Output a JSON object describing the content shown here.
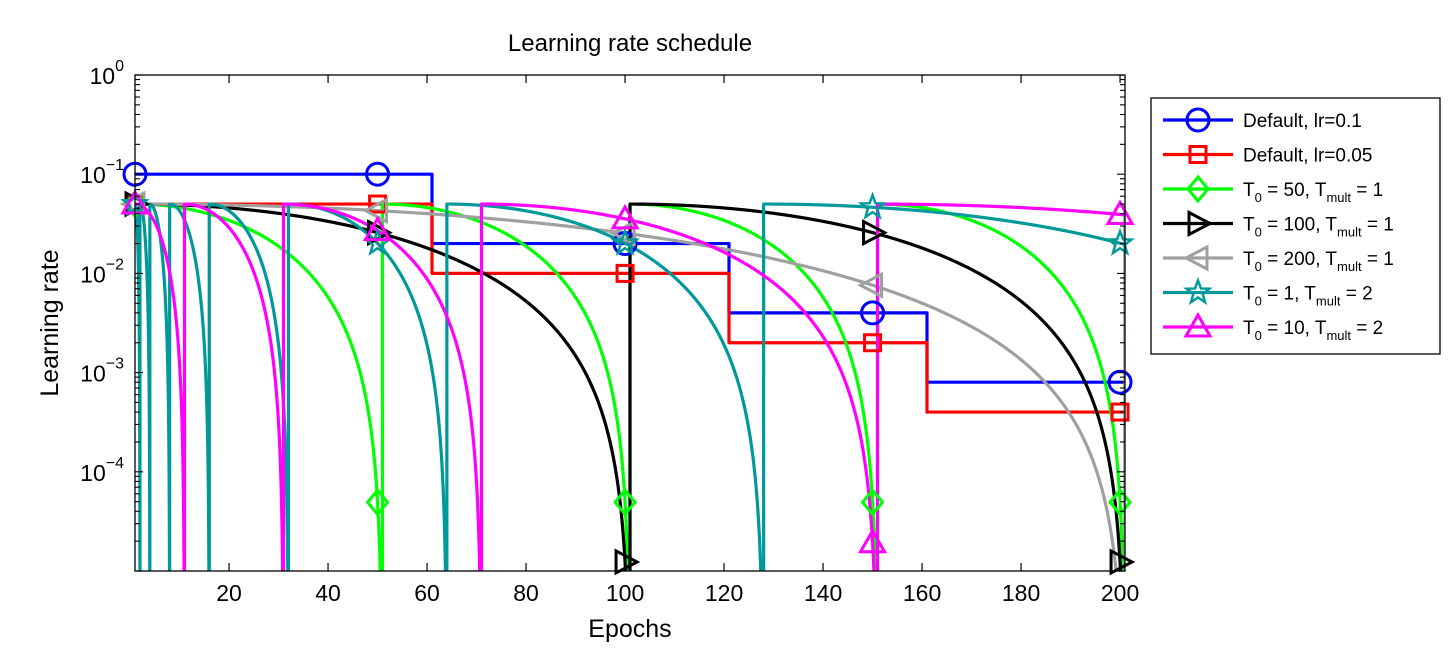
{
  "chart_data": {
    "type": "line",
    "title": "Learning rate schedule",
    "xlabel": "Epochs",
    "ylabel": "Learning rate",
    "xlim": [
      1,
      201
    ],
    "ylim": [
      1e-05,
      1
    ],
    "yscale": "log",
    "x_ticks": [
      20,
      40,
      60,
      80,
      100,
      120,
      140,
      160,
      180,
      200
    ],
    "y_ticks": [
      {
        "value": 1,
        "base": "10",
        "exp": "0"
      },
      {
        "value": 0.1,
        "base": "10",
        "exp": "−1"
      },
      {
        "value": 0.01,
        "base": "10",
        "exp": "−2"
      },
      {
        "value": 0.001,
        "base": "10",
        "exp": "−3"
      },
      {
        "value": 0.0001,
        "base": "10",
        "exp": "−4"
      }
    ],
    "grid": false,
    "legend_position": "outside-right",
    "marker_epochs": [
      1,
      50,
      100,
      150,
      200
    ],
    "series": [
      {
        "name": "Default, lr=0.1",
        "label_main": "Default, lr=0.1",
        "color": "#0000ff",
        "marker": "circle",
        "schedule": "step",
        "lr": 0.1,
        "decay_epochs": [
          60,
          120,
          160
        ],
        "gamma": 0.2,
        "epochs": 200
      },
      {
        "name": "Default, lr=0.05",
        "label_main": "Default, lr=0.05",
        "color": "#ff0000",
        "marker": "square",
        "schedule": "step",
        "lr": 0.05,
        "decay_epochs": [
          60,
          120,
          160
        ],
        "gamma": 0.2,
        "epochs": 200
      },
      {
        "name": "T_0 = 50, T_mult = 1",
        "label_prefix": "T",
        "label_sub0": "0",
        "label_mid": " = 50, T",
        "label_sub1": "mult",
        "label_suffix": " = 1",
        "color": "#00ff00",
        "marker": "diamond",
        "schedule": "cosine_restart",
        "lr": 0.05,
        "T0": 50,
        "Tmult": 1,
        "epochs": 200
      },
      {
        "name": "T_0 = 100, T_mult = 1",
        "label_prefix": "T",
        "label_sub0": "0",
        "label_mid": " = 100, T",
        "label_sub1": "mult",
        "label_suffix": " = 1",
        "color": "#000000",
        "marker": "triangle-right",
        "schedule": "cosine_restart",
        "lr": 0.05,
        "T0": 100,
        "Tmult": 1,
        "epochs": 200
      },
      {
        "name": "T_0 = 200, T_mult = 1",
        "label_prefix": "T",
        "label_sub0": "0",
        "label_mid": " = 200, T",
        "label_sub1": "mult",
        "label_suffix": " = 1",
        "color": "#a0a0a0",
        "marker": "triangle-left",
        "schedule": "cosine_restart",
        "lr": 0.05,
        "T0": 200,
        "Tmult": 1,
        "epochs": 200
      },
      {
        "name": "T_0 = 1, T_mult = 2",
        "label_prefix": "T",
        "label_sub0": "0",
        "label_mid": " = 1, T",
        "label_sub1": "mult",
        "label_suffix": " = 2",
        "color": "#009999",
        "marker": "star",
        "schedule": "cosine_restart",
        "lr": 0.05,
        "T0": 1,
        "Tmult": 2,
        "epochs": 200
      },
      {
        "name": "T_0 = 10, T_mult = 2",
        "label_prefix": "T",
        "label_sub0": "0",
        "label_mid": " = 10, T",
        "label_sub1": "mult",
        "label_suffix": " = 2",
        "color": "#ff00ff",
        "marker": "triangle-up",
        "schedule": "cosine_restart",
        "lr": 0.05,
        "T0": 10,
        "Tmult": 2,
        "epochs": 200
      }
    ]
  }
}
